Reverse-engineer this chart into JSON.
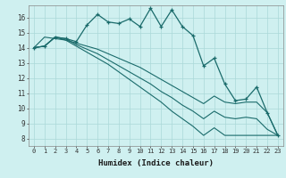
{
  "xlabel": "Humidex (Indice chaleur)",
  "ylabel": "",
  "xlim": [
    -0.5,
    23.5
  ],
  "ylim": [
    7.5,
    16.8
  ],
  "yticks": [
    8,
    9,
    10,
    11,
    12,
    13,
    14,
    15,
    16
  ],
  "xtick_labels": [
    "0",
    "1",
    "2",
    "3",
    "4",
    "5",
    "6",
    "7",
    "8",
    "9",
    "10",
    "11",
    "12",
    "13",
    "14",
    "15",
    "16",
    "17",
    "18",
    "19",
    "20",
    "21",
    "22",
    "23"
  ],
  "bg_color": "#cff0f0",
  "grid_color": "#aad8d8",
  "line_color": "#1a6b6b",
  "line1_y": [
    14.0,
    14.1,
    14.7,
    14.6,
    14.4,
    15.5,
    16.2,
    15.7,
    15.6,
    15.9,
    15.4,
    16.6,
    15.4,
    16.5,
    15.4,
    14.8,
    12.8,
    13.3,
    11.6,
    10.5,
    10.6,
    11.4,
    9.7,
    8.2
  ],
  "straight_lines": [
    [
      14.0,
      14.7,
      14.6,
      14.5,
      14.3,
      14.1,
      13.9,
      13.6,
      13.3,
      13.0,
      12.7,
      12.3,
      11.9,
      11.5,
      11.1,
      10.7,
      10.3,
      10.8,
      10.4,
      10.3,
      10.4,
      10.4,
      9.7,
      8.2
    ],
    [
      14.0,
      14.1,
      14.7,
      14.6,
      14.2,
      13.9,
      13.6,
      13.2,
      12.8,
      12.4,
      12.0,
      11.6,
      11.1,
      10.7,
      10.2,
      9.8,
      9.3,
      9.8,
      9.4,
      9.3,
      9.4,
      9.3,
      8.6,
      8.2
    ],
    [
      14.0,
      14.1,
      14.7,
      14.5,
      14.1,
      13.7,
      13.3,
      12.9,
      12.4,
      11.9,
      11.4,
      10.9,
      10.4,
      9.8,
      9.3,
      8.8,
      8.2,
      8.7,
      8.2,
      8.2,
      8.2,
      8.2,
      8.2,
      8.2
    ]
  ]
}
